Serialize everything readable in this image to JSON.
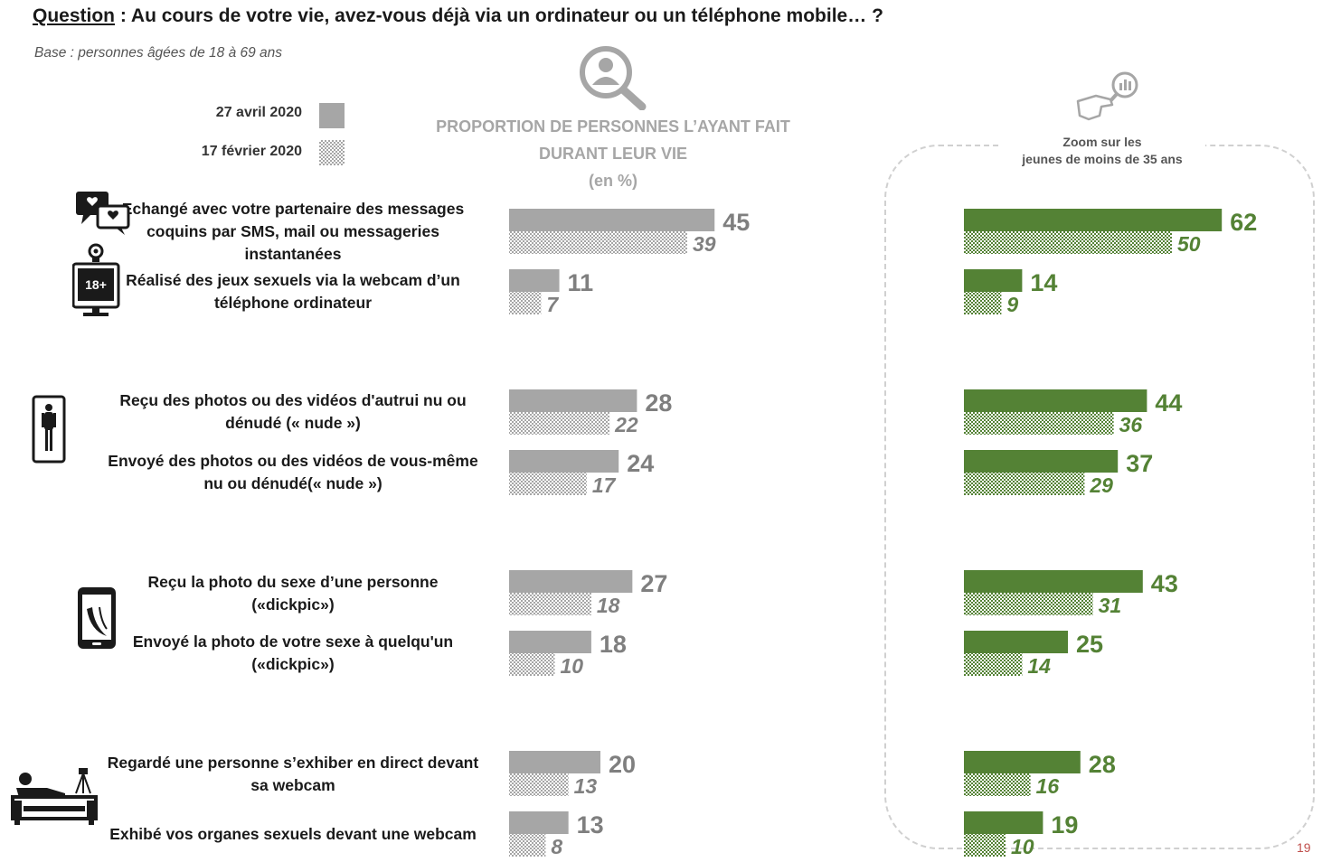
{
  "header": {
    "question_label": "Question",
    "question_text": " : Au cours de votre vie, avez-vous déjà via un ordinateur ou un téléphone mobile… ?",
    "base": "Base : personnes âgées de 18 à 69 ans"
  },
  "legend": {
    "current": "27 avril 2020",
    "previous": "17 février 2020"
  },
  "chart_header": {
    "line1": "PROPORTION DE PERSONNES L’AYANT FAIT",
    "line2": "DURANT LEUR VIE",
    "line3": "(en %)"
  },
  "zoom": {
    "line1": "Zoom sur les",
    "line2": "jeunes de moins de 35 ans"
  },
  "items": [
    {
      "label_lines": [
        "Echangé avec votre partenaire des messages",
        "coquins par SMS, mail ou messageries",
        "instantanées"
      ]
    },
    {
      "label_lines": [
        "Réalisé des jeux sexuels via la webcam d’un",
        "téléphone ordinateur"
      ]
    },
    {
      "label_lines": [
        "Reçu des photos ou des vidéos d'autrui nu ou",
        "dénudé (« nude »)"
      ]
    },
    {
      "label_lines": [
        "Envoyé des photos ou des vidéos de vous-même",
        "nu ou dénudé(« nude »)"
      ]
    },
    {
      "label_lines": [
        "Reçu la photo du sexe d’une personne",
        "(«dickpic»)"
      ]
    },
    {
      "label_lines": [
        "Envoyé la photo de votre sexe à quelqu'un",
        "(«dickpic»)"
      ]
    },
    {
      "label_lines": [
        "Regardé une personne s’exhiber en direct devant",
        "sa webcam"
      ]
    },
    {
      "label_lines": [
        "Exhibé vos organes sexuels devant une webcam"
      ]
    }
  ],
  "icons": {
    "webcam_badge": "18+"
  },
  "page_number": "19",
  "colors": {
    "gray_bar": "#a6a6a6",
    "gray_value": "#7f7f7f",
    "gray_value_italic": "#808080",
    "green_bar": "#548235",
    "green_value": "#548235"
  },
  "chart_data": [
    {
      "type": "bar",
      "orientation": "horizontal",
      "title": "PROPORTION DE PERSONNES L’AYANT FAIT DURANT LEUR VIE (en %)",
      "categories": [
        "Echangé avec votre partenaire des messages coquins par SMS, mail ou messageries instantanées",
        "Réalisé des jeux sexuels via la webcam d’un téléphone ordinateur",
        "Reçu des photos ou des vidéos d'autrui nu ou dénudé (« nude »)",
        "Envoyé des photos ou des vidéos de vous-même nu ou dénudé(« nude »)",
        "Reçu la photo du sexe d’une personne («dickpic»)",
        "Envoyé la photo de votre sexe à quelqu'un («dickpic»)",
        "Regardé une personne s’exhiber en direct devant sa webcam",
        "Exhibé vos organes sexuels devant une webcam"
      ],
      "series": [
        {
          "name": "27 avril 2020",
          "values": [
            45,
            11,
            28,
            24,
            27,
            18,
            20,
            13
          ]
        },
        {
          "name": "17 février 2020",
          "values": [
            39,
            7,
            22,
            17,
            18,
            10,
            13,
            8
          ]
        }
      ]
    },
    {
      "type": "bar",
      "orientation": "horizontal",
      "title": "Zoom sur les jeunes de moins de 35 ans",
      "categories": [
        "Echangé avec votre partenaire des messages coquins par SMS, mail ou messageries instantanées",
        "Réalisé des jeux sexuels via la webcam d’un téléphone ordinateur",
        "Reçu des photos ou des vidéos d'autrui nu ou dénudé (« nude »)",
        "Envoyé des photos ou des vidéos de vous-même nu ou dénudé(« nude »)",
        "Reçu la photo du sexe d’une personne («dickpic»)",
        "Envoyé la photo de votre sexe à quelqu'un («dickpic»)",
        "Regardé une personne s’exhiber en direct devant sa webcam",
        "Exhibé vos organes sexuels devant une webcam"
      ],
      "series": [
        {
          "name": "27 avril 2020",
          "values": [
            62,
            14,
            44,
            37,
            43,
            25,
            28,
            19
          ]
        },
        {
          "name": "17 février 2020",
          "values": [
            50,
            9,
            36,
            29,
            31,
            14,
            16,
            10
          ]
        }
      ]
    }
  ]
}
